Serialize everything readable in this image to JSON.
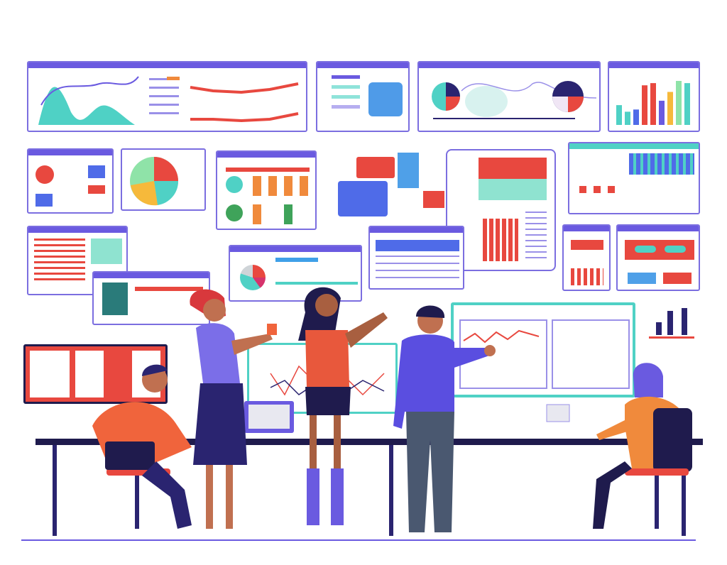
{
  "colors": {
    "frame": "#6a5ae0",
    "teal": "#4fd1c5",
    "red": "#e8483f",
    "orange": "#f08a3c",
    "navy": "#2a2470",
    "purple": "#6a5ae0",
    "desk": "#1f1b4d"
  },
  "bar_panel_levels": [
    0.45,
    0.3,
    0.35,
    0.9,
    0.95,
    0.55,
    0.75,
    1.0,
    0.95
  ]
}
